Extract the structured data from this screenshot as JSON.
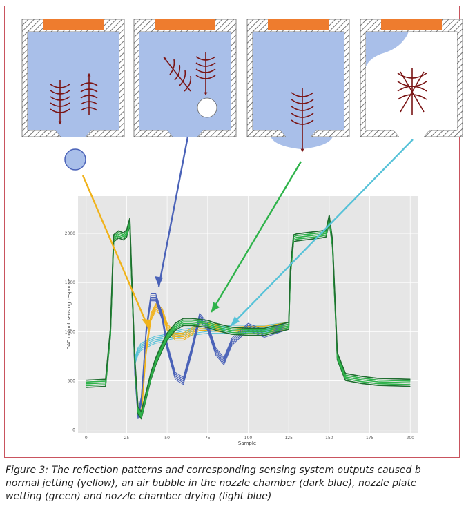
{
  "caption": {
    "lines": [
      "Figure 3: The reflection patterns and corresponding sensing system outputs caused b",
      "normal jetting (yellow), an air bubble in the nozzle chamber (dark blue), nozzle plate",
      "wetting (green) and nozzle chamber drying (light blue)"
    ]
  },
  "panels": [
    {
      "id": "normal-jetting",
      "state": "droplet ejected below nozzle"
    },
    {
      "id": "air-bubble",
      "state": "air bubble inside chamber"
    },
    {
      "id": "nozzle-plate-wetting",
      "state": "fluid spread over nozzle plate"
    },
    {
      "id": "chamber-drying",
      "state": "chamber partially empty"
    }
  ],
  "colors": {
    "chamber_fill": "#a9bfe9",
    "actuator": "#ee7c2e",
    "wave_arrows": "#7a1414",
    "yellow_trace": "#f0b21a",
    "dark_blue_trace": "#4a62b8",
    "green_trace": "#2eb34a",
    "light_blue_trace": "#57c2d8",
    "plot_bg": "#e6e6e6"
  },
  "chart_data": {
    "type": "line",
    "xlabel": "Sample",
    "ylabel": "DAC output sensing response",
    "xlim": [
      -5,
      205
    ],
    "ylim": [
      -30,
      2380
    ],
    "x_ticks": [
      "0",
      "25",
      "50",
      "75",
      "100",
      "125",
      "150",
      "175",
      "200"
    ],
    "y_ticks": [
      "0",
      "500",
      "1000",
      "1500",
      "2000"
    ],
    "grid": true,
    "series": [
      {
        "color": "yellow",
        "x": [
          0,
          12,
          15,
          17,
          20,
          23,
          25,
          27,
          28,
          30,
          32,
          34,
          37,
          40,
          43,
          47,
          50,
          55,
          60,
          65,
          70,
          75,
          80,
          85,
          90,
          100,
          110,
          125,
          126,
          128,
          130,
          135,
          140,
          145,
          148,
          150,
          152,
          155,
          160,
          170,
          180,
          200
        ],
        "y": [
          470,
          480,
          1000,
          1950,
          1990,
          1970,
          2000,
          2120,
          1600,
          700,
          200,
          150,
          800,
          1150,
          1250,
          1200,
          1050,
          950,
          950,
          1000,
          1050,
          1050,
          1040,
          1030,
          1010,
          1020,
          1020,
          1060,
          1600,
          1950,
          1960,
          1970,
          1980,
          1990,
          2000,
          2150,
          1900,
          750,
          540,
          510,
          490,
          480
        ]
      },
      {
        "color": "dark blue",
        "x": [
          0,
          12,
          15,
          17,
          20,
          23,
          25,
          27,
          28,
          30,
          32,
          34,
          37,
          40,
          43,
          47,
          50,
          55,
          60,
          65,
          70,
          75,
          80,
          85,
          90,
          100,
          110,
          125,
          126,
          128,
          130,
          135,
          140,
          145,
          148,
          150,
          152,
          155,
          160,
          170,
          180,
          200
        ],
        "y": [
          470,
          480,
          1000,
          1950,
          1990,
          1970,
          2000,
          2120,
          1600,
          600,
          150,
          300,
          1000,
          1350,
          1350,
          1150,
          850,
          550,
          500,
          800,
          1150,
          1050,
          800,
          700,
          900,
          1050,
          980,
          1060,
          1600,
          1950,
          1960,
          1970,
          1980,
          1990,
          2000,
          2150,
          1900,
          750,
          540,
          510,
          490,
          480
        ]
      },
      {
        "color": "green",
        "x": [
          0,
          12,
          15,
          17,
          20,
          23,
          25,
          27,
          28,
          30,
          32,
          34,
          37,
          40,
          43,
          47,
          50,
          55,
          60,
          65,
          70,
          75,
          80,
          85,
          90,
          100,
          110,
          125,
          126,
          128,
          130,
          135,
          140,
          145,
          148,
          150,
          152,
          155,
          160,
          170,
          180,
          200
        ],
        "y": [
          470,
          480,
          1000,
          1950,
          1990,
          1970,
          2000,
          2120,
          1600,
          700,
          200,
          150,
          350,
          550,
          700,
          850,
          950,
          1050,
          1100,
          1100,
          1090,
          1080,
          1050,
          1030,
          1010,
          1000,
          1000,
          1060,
          1600,
          1950,
          1960,
          1970,
          1980,
          1990,
          2000,
          2150,
          1900,
          750,
          540,
          510,
          490,
          480
        ]
      },
      {
        "color": "light blue",
        "x": [
          0,
          12,
          15,
          17,
          20,
          23,
          25,
          27,
          28,
          30,
          32,
          34,
          37,
          40,
          43,
          47,
          50,
          55,
          60,
          65,
          70,
          75,
          80,
          85,
          90,
          100,
          110,
          125,
          126,
          128,
          130,
          135,
          140,
          145,
          148,
          150,
          152,
          155,
          160,
          170,
          180,
          200
        ],
        "y": [
          470,
          480,
          1000,
          1950,
          1990,
          1970,
          2000,
          2120,
          1600,
          700,
          800,
          850,
          870,
          900,
          920,
          930,
          950,
          970,
          990,
          1000,
          1010,
          1020,
          1020,
          1020,
          1030,
          1030,
          1030,
          1060,
          1600,
          1950,
          1960,
          1970,
          1980,
          1990,
          2000,
          2150,
          1900,
          750,
          540,
          510,
          490,
          480
        ]
      }
    ]
  }
}
